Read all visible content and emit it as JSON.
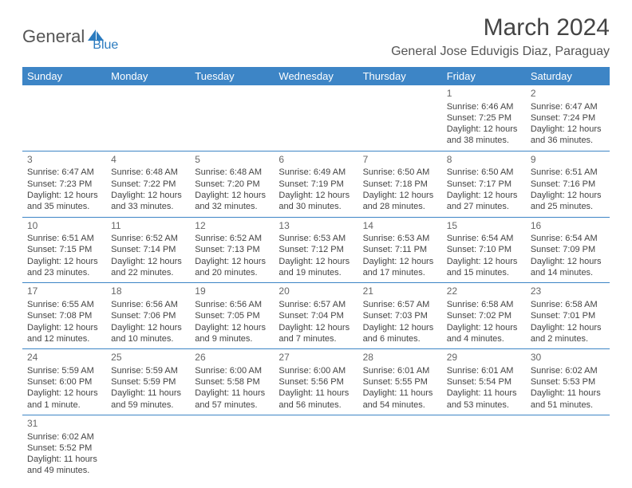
{
  "logo": {
    "part1": "General",
    "part2": "Blue"
  },
  "title": "March 2024",
  "location": "General Jose Eduvigis Diaz, Paraguay",
  "colors": {
    "header_bg": "#3d85c6",
    "header_text": "#ffffff",
    "cell_border": "#3d85c6",
    "logo_blue": "#2b7bbf"
  },
  "weekdays": [
    "Sunday",
    "Monday",
    "Tuesday",
    "Wednesday",
    "Thursday",
    "Friday",
    "Saturday"
  ],
  "weeks": [
    [
      null,
      null,
      null,
      null,
      null,
      {
        "n": "1",
        "sr": "Sunrise: 6:46 AM",
        "ss": "Sunset: 7:25 PM",
        "d1": "Daylight: 12 hours",
        "d2": "and 38 minutes."
      },
      {
        "n": "2",
        "sr": "Sunrise: 6:47 AM",
        "ss": "Sunset: 7:24 PM",
        "d1": "Daylight: 12 hours",
        "d2": "and 36 minutes."
      }
    ],
    [
      {
        "n": "3",
        "sr": "Sunrise: 6:47 AM",
        "ss": "Sunset: 7:23 PM",
        "d1": "Daylight: 12 hours",
        "d2": "and 35 minutes."
      },
      {
        "n": "4",
        "sr": "Sunrise: 6:48 AM",
        "ss": "Sunset: 7:22 PM",
        "d1": "Daylight: 12 hours",
        "d2": "and 33 minutes."
      },
      {
        "n": "5",
        "sr": "Sunrise: 6:48 AM",
        "ss": "Sunset: 7:20 PM",
        "d1": "Daylight: 12 hours",
        "d2": "and 32 minutes."
      },
      {
        "n": "6",
        "sr": "Sunrise: 6:49 AM",
        "ss": "Sunset: 7:19 PM",
        "d1": "Daylight: 12 hours",
        "d2": "and 30 minutes."
      },
      {
        "n": "7",
        "sr": "Sunrise: 6:50 AM",
        "ss": "Sunset: 7:18 PM",
        "d1": "Daylight: 12 hours",
        "d2": "and 28 minutes."
      },
      {
        "n": "8",
        "sr": "Sunrise: 6:50 AM",
        "ss": "Sunset: 7:17 PM",
        "d1": "Daylight: 12 hours",
        "d2": "and 27 minutes."
      },
      {
        "n": "9",
        "sr": "Sunrise: 6:51 AM",
        "ss": "Sunset: 7:16 PM",
        "d1": "Daylight: 12 hours",
        "d2": "and 25 minutes."
      }
    ],
    [
      {
        "n": "10",
        "sr": "Sunrise: 6:51 AM",
        "ss": "Sunset: 7:15 PM",
        "d1": "Daylight: 12 hours",
        "d2": "and 23 minutes."
      },
      {
        "n": "11",
        "sr": "Sunrise: 6:52 AM",
        "ss": "Sunset: 7:14 PM",
        "d1": "Daylight: 12 hours",
        "d2": "and 22 minutes."
      },
      {
        "n": "12",
        "sr": "Sunrise: 6:52 AM",
        "ss": "Sunset: 7:13 PM",
        "d1": "Daylight: 12 hours",
        "d2": "and 20 minutes."
      },
      {
        "n": "13",
        "sr": "Sunrise: 6:53 AM",
        "ss": "Sunset: 7:12 PM",
        "d1": "Daylight: 12 hours",
        "d2": "and 19 minutes."
      },
      {
        "n": "14",
        "sr": "Sunrise: 6:53 AM",
        "ss": "Sunset: 7:11 PM",
        "d1": "Daylight: 12 hours",
        "d2": "and 17 minutes."
      },
      {
        "n": "15",
        "sr": "Sunrise: 6:54 AM",
        "ss": "Sunset: 7:10 PM",
        "d1": "Daylight: 12 hours",
        "d2": "and 15 minutes."
      },
      {
        "n": "16",
        "sr": "Sunrise: 6:54 AM",
        "ss": "Sunset: 7:09 PM",
        "d1": "Daylight: 12 hours",
        "d2": "and 14 minutes."
      }
    ],
    [
      {
        "n": "17",
        "sr": "Sunrise: 6:55 AM",
        "ss": "Sunset: 7:08 PM",
        "d1": "Daylight: 12 hours",
        "d2": "and 12 minutes."
      },
      {
        "n": "18",
        "sr": "Sunrise: 6:56 AM",
        "ss": "Sunset: 7:06 PM",
        "d1": "Daylight: 12 hours",
        "d2": "and 10 minutes."
      },
      {
        "n": "19",
        "sr": "Sunrise: 6:56 AM",
        "ss": "Sunset: 7:05 PM",
        "d1": "Daylight: 12 hours",
        "d2": "and 9 minutes."
      },
      {
        "n": "20",
        "sr": "Sunrise: 6:57 AM",
        "ss": "Sunset: 7:04 PM",
        "d1": "Daylight: 12 hours",
        "d2": "and 7 minutes."
      },
      {
        "n": "21",
        "sr": "Sunrise: 6:57 AM",
        "ss": "Sunset: 7:03 PM",
        "d1": "Daylight: 12 hours",
        "d2": "and 6 minutes."
      },
      {
        "n": "22",
        "sr": "Sunrise: 6:58 AM",
        "ss": "Sunset: 7:02 PM",
        "d1": "Daylight: 12 hours",
        "d2": "and 4 minutes."
      },
      {
        "n": "23",
        "sr": "Sunrise: 6:58 AM",
        "ss": "Sunset: 7:01 PM",
        "d1": "Daylight: 12 hours",
        "d2": "and 2 minutes."
      }
    ],
    [
      {
        "n": "24",
        "sr": "Sunrise: 5:59 AM",
        "ss": "Sunset: 6:00 PM",
        "d1": "Daylight: 12 hours",
        "d2": "and 1 minute."
      },
      {
        "n": "25",
        "sr": "Sunrise: 5:59 AM",
        "ss": "Sunset: 5:59 PM",
        "d1": "Daylight: 11 hours",
        "d2": "and 59 minutes."
      },
      {
        "n": "26",
        "sr": "Sunrise: 6:00 AM",
        "ss": "Sunset: 5:58 PM",
        "d1": "Daylight: 11 hours",
        "d2": "and 57 minutes."
      },
      {
        "n": "27",
        "sr": "Sunrise: 6:00 AM",
        "ss": "Sunset: 5:56 PM",
        "d1": "Daylight: 11 hours",
        "d2": "and 56 minutes."
      },
      {
        "n": "28",
        "sr": "Sunrise: 6:01 AM",
        "ss": "Sunset: 5:55 PM",
        "d1": "Daylight: 11 hours",
        "d2": "and 54 minutes."
      },
      {
        "n": "29",
        "sr": "Sunrise: 6:01 AM",
        "ss": "Sunset: 5:54 PM",
        "d1": "Daylight: 11 hours",
        "d2": "and 53 minutes."
      },
      {
        "n": "30",
        "sr": "Sunrise: 6:02 AM",
        "ss": "Sunset: 5:53 PM",
        "d1": "Daylight: 11 hours",
        "d2": "and 51 minutes."
      }
    ],
    [
      {
        "n": "31",
        "sr": "Sunrise: 6:02 AM",
        "ss": "Sunset: 5:52 PM",
        "d1": "Daylight: 11 hours",
        "d2": "and 49 minutes."
      },
      null,
      null,
      null,
      null,
      null,
      null
    ]
  ]
}
